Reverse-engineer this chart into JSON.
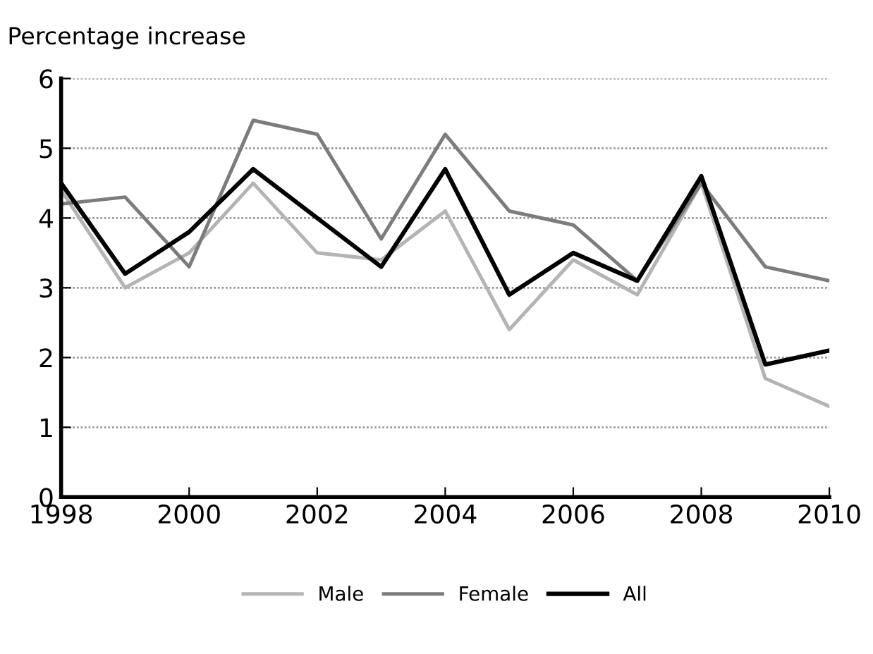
{
  "chart_data": {
    "type": "line",
    "ylabel": "Percentage increase",
    "x": [
      1998,
      1999,
      2000,
      2001,
      2002,
      2003,
      2004,
      2005,
      2006,
      2007,
      2008,
      2009,
      2010
    ],
    "series": [
      {
        "name": "Male",
        "color": "#b4b4b4",
        "values": [
          4.4,
          3.0,
          3.5,
          4.5,
          3.5,
          3.4,
          4.1,
          2.4,
          3.4,
          2.9,
          4.5,
          1.7,
          1.3
        ]
      },
      {
        "name": "Female",
        "color": "#7c7c7c",
        "values": [
          4.2,
          4.3,
          3.3,
          5.4,
          5.2,
          3.7,
          5.2,
          4.1,
          3.9,
          3.1,
          4.5,
          3.3,
          3.1
        ]
      },
      {
        "name": "All",
        "color": "#000000",
        "values": [
          4.5,
          3.2,
          3.8,
          4.7,
          4.0,
          3.3,
          4.7,
          2.9,
          3.5,
          3.1,
          4.6,
          1.9,
          2.1
        ]
      }
    ],
    "xlim": [
      1998,
      2010
    ],
    "xticks": [
      1998,
      2000,
      2002,
      2004,
      2006,
      2008,
      2010
    ],
    "ylim": [
      0,
      6
    ],
    "yticks": [
      0,
      1,
      2,
      3,
      4,
      5,
      6
    ],
    "grid": "y",
    "legend": "bottom"
  }
}
